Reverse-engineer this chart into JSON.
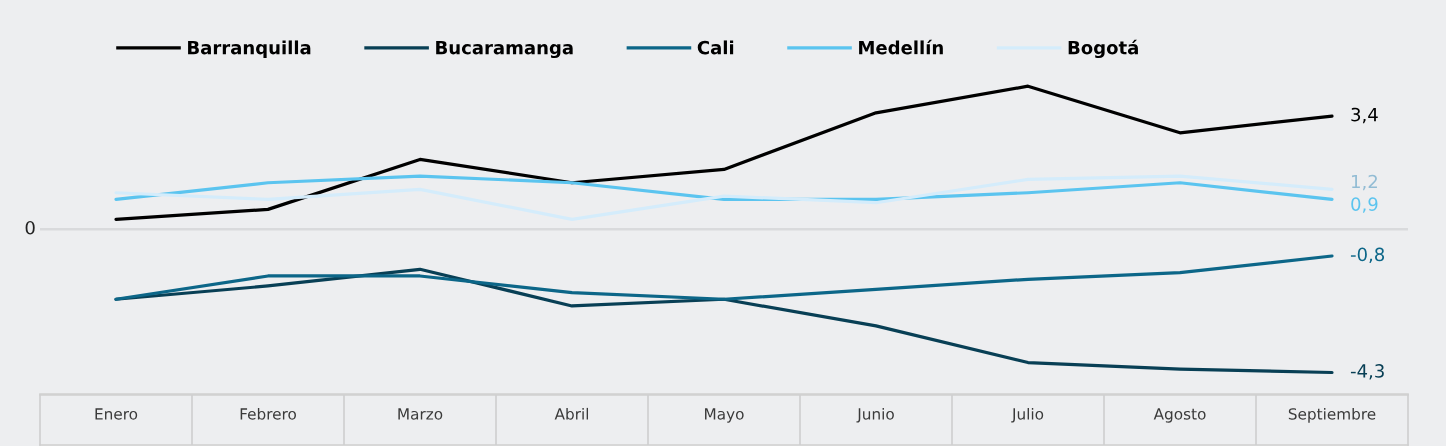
{
  "chart_data": {
    "type": "line",
    "categories": [
      "Enero",
      "Febrero",
      "Marzo",
      "Abril",
      "Mayo",
      "Junio",
      "Julio",
      "Agosto",
      "Septiembre"
    ],
    "legend": "top left",
    "ref_lines": [
      {
        "axis": "y",
        "value": 0,
        "label": "0",
        "color": "#d9dadc"
      }
    ],
    "series": [
      {
        "name": "Barranquilla",
        "color": "#000000",
        "values": [
          0.3,
          0.6,
          2.1,
          1.4,
          1.8,
          3.5,
          4.3,
          2.9,
          3.4
        ],
        "value_labels": [
          null,
          null,
          null,
          null,
          null,
          null,
          null,
          null,
          "3,4"
        ]
      },
      {
        "name": "Bucaramanga",
        "color": "#083f55",
        "values": [
          -2.1,
          -1.7,
          -1.2,
          -2.3,
          -2.1,
          -2.9,
          -4.0,
          -4.2,
          -4.3
        ],
        "value_labels": [
          null,
          null,
          null,
          null,
          null,
          null,
          null,
          null,
          "-4,3"
        ]
      },
      {
        "name": "Cali",
        "color": "#0c6688",
        "values": [
          -2.1,
          -1.4,
          -1.4,
          -1.9,
          -2.1,
          -1.8,
          -1.5,
          -1.3,
          -0.8
        ],
        "value_labels": [
          null,
          null,
          null,
          null,
          null,
          null,
          null,
          null,
          "-0,8"
        ]
      },
      {
        "name": "Medellín",
        "color": "#5bc4ef",
        "values": [
          0.9,
          1.4,
          1.6,
          1.4,
          0.9,
          0.9,
          1.1,
          1.4,
          0.9
        ],
        "value_labels": [
          null,
          null,
          null,
          null,
          null,
          null,
          null,
          null,
          "0,9"
        ]
      },
      {
        "name": "Bogotá",
        "color": "#d4ecfb",
        "values": [
          1.1,
          0.9,
          1.2,
          0.3,
          1.0,
          0.8,
          1.5,
          1.6,
          1.2
        ],
        "value_labels": [
          null,
          null,
          null,
          null,
          null,
          null,
          null,
          null,
          "1,2"
        ]
      }
    ]
  }
}
